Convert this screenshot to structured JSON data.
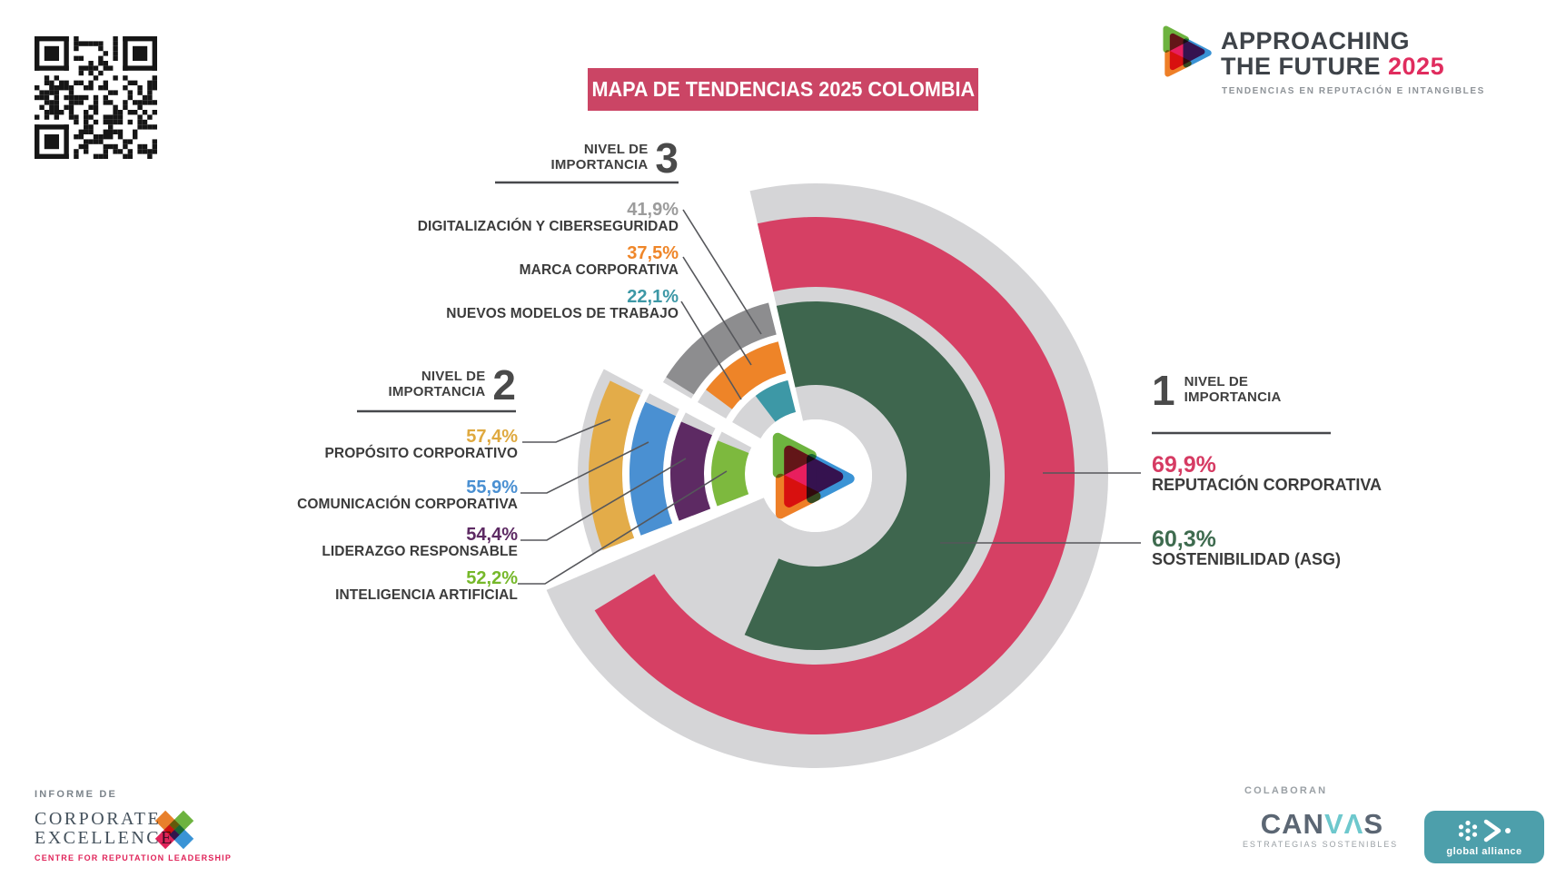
{
  "title_banner": {
    "text": "MAPA DE TENDENCIAS 2025 COLOMBIA",
    "bg": "#cb4565"
  },
  "brand": {
    "line1": "APPROACHING",
    "line2": "THE FUTURE",
    "year": "2025",
    "tagline": "TENDENCIAS EN REPUTACIÓN E INTANGIBLES"
  },
  "chart_data": {
    "type": "sunburst",
    "title": "MAPA DE TENDENCIAS 2025 COLOMBIA",
    "units": "%",
    "track_color": "#d5d5d7",
    "levels": [
      {
        "level": 1,
        "heading": {
          "pre": "NIVEL DE",
          "post": "IMPORTANCIA",
          "number": "1"
        },
        "items": [
          {
            "name": "REPUTACIÓN CORPORATIVA",
            "value": "69,9%",
            "number": 69.9,
            "color": "#d64064"
          },
          {
            "name": "SOSTENIBILIDAD (ASG)",
            "value": "60,3%",
            "number": 60.3,
            "color": "#3e664e"
          }
        ]
      },
      {
        "level": 2,
        "heading": {
          "pre": "NIVEL DE",
          "post": "IMPORTANCIA",
          "number": "2"
        },
        "items": [
          {
            "name": "PROPÓSITO CORPORATIVO",
            "value": "57,4%",
            "number": 57.4,
            "color": "#e3ac49"
          },
          {
            "name": "COMUNICACIÓN CORPORATIVA",
            "value": "55,9%",
            "number": 55.9,
            "color": "#4a90d2"
          },
          {
            "name": "LIDERAZGO RESPONSABLE",
            "value": "54,4%",
            "number": 54.4,
            "color": "#5d2a63"
          },
          {
            "name": "INTELIGENCIA ARTIFICIAL",
            "value": "52,2%",
            "number": 52.2,
            "color": "#7db93e"
          }
        ]
      },
      {
        "level": 3,
        "heading": {
          "pre": "NIVEL DE",
          "post": "IMPORTANCIA",
          "number": "3"
        },
        "items": [
          {
            "name": "DIGITALIZACIÓN Y CIBERSEGURIDAD",
            "value": "41,9%",
            "number": 41.9,
            "color": "#8d8d8f"
          },
          {
            "name": "MARCA CORPORATIVA",
            "value": "37,5%",
            "number": 37.5,
            "color": "#ee8428"
          },
          {
            "name": "NUEVOS MODELOS DE TRABAJO",
            "value": "22,1%",
            "number": 22.1,
            "color": "#3d98a6"
          }
        ]
      }
    ]
  },
  "footer": {
    "informe_de": "INFORME DE",
    "corporate_line1": "CORPORATE",
    "corporate_line2": "EXCELLENCE",
    "corporate_tag": "CENTRE FOR REPUTATION LEADERSHIP",
    "colaboran": "COLABORAN",
    "canvas_c": "CAN",
    "canvas_va": "VΛ",
    "canvas_s": "S",
    "canvas_tag": "ESTRATEGIAS SOSTENIBLES",
    "global_alliance": "global alliance"
  }
}
